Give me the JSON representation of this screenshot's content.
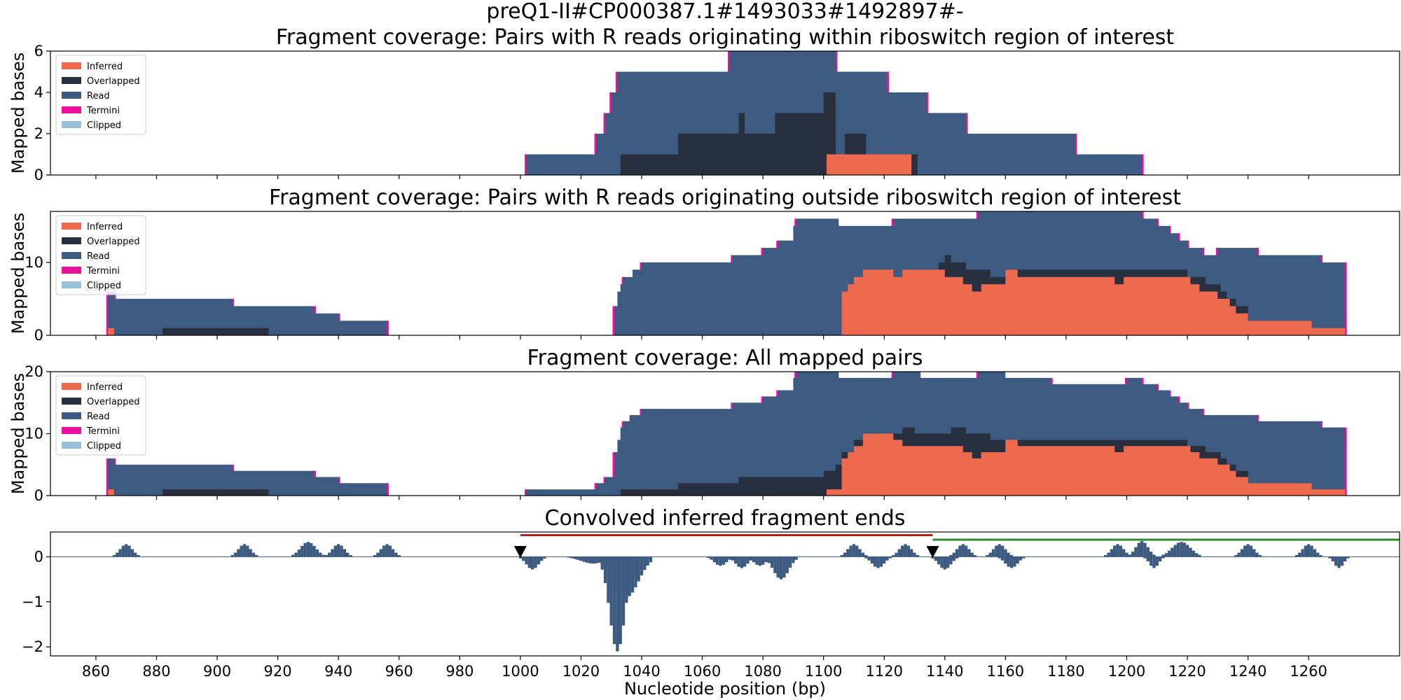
{
  "figure": {
    "suptitle_line1": "preQ1-II#CP000387.1#1493033#1492897#-",
    "xlabel": "Nucleotide position (bp)",
    "xlim": [
      845,
      1290
    ],
    "xticks": [
      860,
      880,
      900,
      920,
      940,
      960,
      980,
      1000,
      1020,
      1040,
      1060,
      1080,
      1100,
      1120,
      1140,
      1160,
      1180,
      1200,
      1220,
      1240,
      1260
    ]
  },
  "legend": {
    "items": [
      {
        "label": "Inferred",
        "color": "#ee6a4f"
      },
      {
        "label": "Overlapped",
        "color": "#283040"
      },
      {
        "label": "Read",
        "color": "#3d5a80"
      },
      {
        "label": "Termini",
        "color": "#ec0e9c"
      },
      {
        "label": "Clipped",
        "color": "#98c1d9"
      }
    ]
  },
  "chart_data": [
    {
      "type": "area",
      "title": "Fragment coverage: Pairs with R reads originating within riboswitch region of interest",
      "ylabel": "Mapped bases",
      "ylim": [
        0,
        6
      ],
      "yticks": [
        0,
        2,
        4,
        6
      ],
      "total": [
        [
          1002,
          1
        ],
        [
          1025,
          2
        ],
        [
          1028,
          3
        ],
        [
          1030,
          4
        ],
        [
          1032,
          5
        ],
        [
          1069,
          6
        ],
        [
          1104,
          5
        ],
        [
          1121,
          4
        ],
        [
          1134,
          3
        ],
        [
          1147,
          2
        ],
        [
          1183,
          1
        ],
        [
          1205,
          0
        ]
      ],
      "read": [
        [
          1002,
          1
        ],
        [
          1025,
          2
        ],
        [
          1028,
          3
        ],
        [
          1030,
          4
        ],
        [
          1032,
          5
        ],
        [
          1069,
          6
        ],
        [
          1104,
          5
        ],
        [
          1121,
          4
        ],
        [
          1134,
          3
        ],
        [
          1147,
          2
        ],
        [
          1183,
          1
        ],
        [
          1205,
          0
        ]
      ],
      "overlapped": [
        [
          1033,
          1
        ],
        [
          1052,
          2
        ],
        [
          1072,
          3
        ],
        [
          1074,
          2
        ],
        [
          1084,
          3
        ],
        [
          1100,
          4
        ],
        [
          1104,
          1
        ],
        [
          1107,
          2
        ],
        [
          1114,
          1
        ],
        [
          1131,
          0
        ]
      ],
      "inferred": [
        [
          1101,
          1
        ],
        [
          1129,
          0
        ]
      ],
      "termini_x": [
        1002,
        1025,
        1028,
        1030,
        1032,
        1069,
        1104,
        1121,
        1134,
        1147,
        1183,
        1205
      ]
    },
    {
      "type": "area",
      "title": "Fragment coverage: Pairs with R reads originating outside riboswitch region of interest",
      "ylabel": "Mapped bases",
      "ylim": [
        0,
        17
      ],
      "yticks": [
        0,
        10
      ],
      "total": [
        [
          864,
          6
        ],
        [
          866,
          5
        ],
        [
          905,
          4
        ],
        [
          932,
          3
        ],
        [
          940,
          2
        ],
        [
          956,
          0
        ],
        [
          1031,
          4
        ],
        [
          1032,
          6
        ],
        [
          1033,
          7
        ],
        [
          1034,
          8
        ],
        [
          1037,
          9
        ],
        [
          1040,
          10
        ],
        [
          1070,
          11
        ],
        [
          1080,
          12
        ],
        [
          1085,
          13
        ],
        [
          1090,
          15
        ],
        [
          1091,
          16
        ],
        [
          1105,
          15
        ],
        [
          1123,
          16
        ],
        [
          1151,
          17
        ],
        [
          1205,
          16
        ],
        [
          1210,
          15
        ],
        [
          1214,
          14
        ],
        [
          1217,
          13
        ],
        [
          1220,
          12
        ],
        [
          1225,
          11
        ],
        [
          1230,
          12
        ],
        [
          1243,
          11
        ],
        [
          1264,
          10
        ],
        [
          1272,
          0
        ]
      ],
      "read": [
        [
          864,
          6
        ],
        [
          866,
          5
        ],
        [
          905,
          4
        ],
        [
          932,
          3
        ],
        [
          940,
          2
        ],
        [
          956,
          0
        ],
        [
          1031,
          4
        ],
        [
          1032,
          6
        ],
        [
          1033,
          7
        ],
        [
          1034,
          8
        ],
        [
          1037,
          9
        ],
        [
          1040,
          10
        ],
        [
          1070,
          11
        ],
        [
          1080,
          12
        ],
        [
          1085,
          13
        ],
        [
          1090,
          15
        ],
        [
          1091,
          16
        ],
        [
          1105,
          15
        ],
        [
          1123,
          16
        ],
        [
          1151,
          17
        ],
        [
          1205,
          16
        ],
        [
          1210,
          15
        ],
        [
          1214,
          14
        ],
        [
          1217,
          13
        ],
        [
          1220,
          12
        ],
        [
          1225,
          11
        ],
        [
          1230,
          12
        ],
        [
          1243,
          11
        ],
        [
          1264,
          10
        ],
        [
          1272,
          0
        ]
      ],
      "overlapped": [
        [
          864,
          1
        ],
        [
          866,
          0
        ],
        [
          882,
          1
        ],
        [
          917,
          0
        ],
        [
          1126,
          9
        ],
        [
          1138,
          10
        ],
        [
          1140,
          11
        ],
        [
          1142,
          10
        ],
        [
          1147,
          9
        ],
        [
          1155,
          8
        ],
        [
          1160,
          9
        ],
        [
          1220,
          8
        ],
        [
          1226,
          7
        ],
        [
          1231,
          6
        ],
        [
          1233,
          5
        ],
        [
          1236,
          4
        ],
        [
          1240,
          0
        ]
      ],
      "inferred": [
        [
          864,
          1
        ],
        [
          866,
          0
        ],
        [
          1106,
          6
        ],
        [
          1108,
          7
        ],
        [
          1110,
          8
        ],
        [
          1113,
          9
        ],
        [
          1123,
          8
        ],
        [
          1126,
          9
        ],
        [
          1140,
          8
        ],
        [
          1146,
          7
        ],
        [
          1149,
          6
        ],
        [
          1152,
          7
        ],
        [
          1160,
          9
        ],
        [
          1164,
          8
        ],
        [
          1196,
          7
        ],
        [
          1199,
          8
        ],
        [
          1221,
          7
        ],
        [
          1224,
          6
        ],
        [
          1230,
          5
        ],
        [
          1234,
          4
        ],
        [
          1236,
          3
        ],
        [
          1240,
          2
        ],
        [
          1261,
          1
        ],
        [
          1272,
          0
        ]
      ],
      "termini_x": [
        864,
        866,
        905,
        932,
        940,
        956,
        1031,
        1034,
        1040,
        1070,
        1080,
        1085,
        1091,
        1123,
        1151,
        1205,
        1210,
        1214,
        1217,
        1220,
        1225,
        1230,
        1243,
        1264,
        1272
      ]
    },
    {
      "type": "area",
      "title": "Fragment coverage: All mapped pairs",
      "ylabel": "Mapped bases",
      "ylim": [
        0,
        20
      ],
      "yticks": [
        0,
        10,
        20
      ],
      "total": [
        [
          864,
          6
        ],
        [
          866,
          5
        ],
        [
          905,
          4
        ],
        [
          932,
          3
        ],
        [
          940,
          2
        ],
        [
          956,
          0
        ],
        [
          1002,
          1
        ],
        [
          1025,
          2
        ],
        [
          1028,
          3
        ],
        [
          1031,
          7
        ],
        [
          1032,
          9
        ],
        [
          1033,
          11
        ],
        [
          1034,
          12
        ],
        [
          1036,
          13
        ],
        [
          1040,
          14
        ],
        [
          1070,
          15
        ],
        [
          1080,
          16
        ],
        [
          1085,
          17
        ],
        [
          1090,
          19
        ],
        [
          1091,
          20
        ],
        [
          1105,
          19
        ],
        [
          1123,
          20
        ],
        [
          1132,
          19
        ],
        [
          1151,
          20
        ],
        [
          1160,
          19
        ],
        [
          1175,
          18
        ],
        [
          1200,
          19
        ],
        [
          1205,
          18
        ],
        [
          1210,
          17
        ],
        [
          1214,
          16
        ],
        [
          1217,
          15
        ],
        [
          1220,
          14
        ],
        [
          1225,
          13
        ],
        [
          1243,
          12
        ],
        [
          1264,
          11
        ],
        [
          1272,
          0
        ]
      ],
      "read": [
        [
          864,
          6
        ],
        [
          866,
          5
        ],
        [
          905,
          4
        ],
        [
          932,
          3
        ],
        [
          940,
          2
        ],
        [
          956,
          0
        ],
        [
          1002,
          1
        ],
        [
          1025,
          2
        ],
        [
          1028,
          3
        ],
        [
          1031,
          7
        ],
        [
          1032,
          9
        ],
        [
          1033,
          11
        ],
        [
          1034,
          12
        ],
        [
          1036,
          13
        ],
        [
          1040,
          14
        ],
        [
          1070,
          15
        ],
        [
          1080,
          16
        ],
        [
          1085,
          17
        ],
        [
          1090,
          19
        ],
        [
          1091,
          20
        ],
        [
          1105,
          19
        ],
        [
          1123,
          20
        ],
        [
          1132,
          19
        ],
        [
          1151,
          20
        ],
        [
          1160,
          19
        ],
        [
          1175,
          18
        ],
        [
          1200,
          19
        ],
        [
          1205,
          18
        ],
        [
          1210,
          17
        ],
        [
          1214,
          16
        ],
        [
          1217,
          15
        ],
        [
          1220,
          14
        ],
        [
          1225,
          13
        ],
        [
          1243,
          12
        ],
        [
          1264,
          11
        ],
        [
          1272,
          0
        ]
      ],
      "overlapped": [
        [
          864,
          1
        ],
        [
          866,
          0
        ],
        [
          882,
          1
        ],
        [
          917,
          0
        ],
        [
          1033,
          1
        ],
        [
          1052,
          2
        ],
        [
          1072,
          3
        ],
        [
          1084,
          3
        ],
        [
          1100,
          4
        ],
        [
          1104,
          5
        ],
        [
          1106,
          7
        ],
        [
          1110,
          9
        ],
        [
          1113,
          10
        ],
        [
          1126,
          11
        ],
        [
          1130,
          10
        ],
        [
          1142,
          11
        ],
        [
          1147,
          10
        ],
        [
          1155,
          9
        ],
        [
          1160,
          9
        ],
        [
          1220,
          8
        ],
        [
          1226,
          7
        ],
        [
          1231,
          6
        ],
        [
          1233,
          5
        ],
        [
          1236,
          4
        ],
        [
          1240,
          0
        ]
      ],
      "inferred": [
        [
          864,
          1
        ],
        [
          866,
          0
        ],
        [
          1101,
          1
        ],
        [
          1106,
          6
        ],
        [
          1108,
          7
        ],
        [
          1110,
          8
        ],
        [
          1113,
          10
        ],
        [
          1123,
          9
        ],
        [
          1126,
          8
        ],
        [
          1140,
          8
        ],
        [
          1146,
          7
        ],
        [
          1149,
          6
        ],
        [
          1152,
          7
        ],
        [
          1160,
          9
        ],
        [
          1164,
          8
        ],
        [
          1196,
          7
        ],
        [
          1199,
          8
        ],
        [
          1221,
          7
        ],
        [
          1224,
          6
        ],
        [
          1230,
          5
        ],
        [
          1234,
          4
        ],
        [
          1236,
          3
        ],
        [
          1240,
          2
        ],
        [
          1261,
          1
        ],
        [
          1272,
          0
        ]
      ],
      "termini_x": [
        864,
        866,
        905,
        932,
        940,
        956,
        1002,
        1025,
        1028,
        1031,
        1034,
        1040,
        1070,
        1080,
        1085,
        1091,
        1123,
        1151,
        1175,
        1200,
        1205,
        1210,
        1214,
        1217,
        1220,
        1225,
        1243,
        1264,
        1272
      ]
    },
    {
      "type": "bar",
      "title": "Convolved inferred fragment ends",
      "ylabel": "",
      "ylim": [
        -2.2,
        0.55
      ],
      "yticks": [
        -2,
        -1,
        0
      ],
      "bumps": [
        [
          870,
          0.28,
          4
        ],
        [
          909,
          0.28,
          4
        ],
        [
          930,
          0.33,
          5
        ],
        [
          940,
          0.28,
          4
        ],
        [
          956,
          0.28,
          4
        ],
        [
          1004,
          -0.28,
          4
        ],
        [
          1032,
          -2.1,
          5
        ],
        [
          1035,
          -0.9,
          8
        ],
        [
          1024,
          -0.15,
          8
        ],
        [
          1066,
          -0.2,
          4
        ],
        [
          1073,
          -0.25,
          4
        ],
        [
          1079,
          -0.2,
          4
        ],
        [
          1086,
          -0.5,
          5
        ],
        [
          1110,
          0.28,
          4
        ],
        [
          1118,
          -0.25,
          4
        ],
        [
          1127,
          0.28,
          4
        ],
        [
          1140,
          -0.28,
          4
        ],
        [
          1146,
          0.28,
          4
        ],
        [
          1158,
          0.28,
          4
        ],
        [
          1162,
          -0.25,
          4
        ],
        [
          1197,
          0.28,
          4
        ],
        [
          1205,
          0.35,
          4
        ],
        [
          1209,
          -0.25,
          3
        ],
        [
          1218,
          0.33,
          6
        ],
        [
          1240,
          0.28,
          4
        ],
        [
          1260,
          0.28,
          4
        ],
        [
          1270,
          -0.25,
          3
        ]
      ],
      "markers": [
        {
          "x": 1000,
          "y": 0.1,
          "shape": "down-triangle",
          "color": "#000000"
        },
        {
          "x": 1136,
          "y": 0.1,
          "shape": "down-triangle",
          "color": "#000000"
        }
      ],
      "lines": [
        {
          "x0": 1000,
          "x1": 1136,
          "y": 0.48,
          "color": "#b22222"
        },
        {
          "x0": 1136,
          "x1": 1290,
          "y": 0.38,
          "color": "#2e8b2e"
        }
      ]
    }
  ]
}
